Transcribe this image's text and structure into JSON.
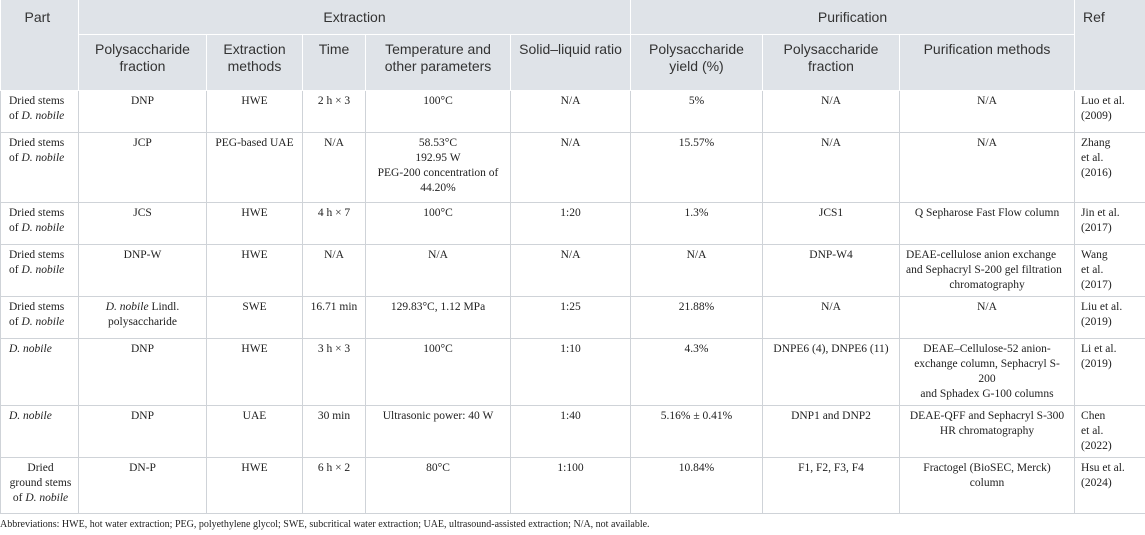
{
  "headers": {
    "part": "Part",
    "extraction": "Extraction",
    "purification": "Purification",
    "ref": "Ref",
    "ext_fraction": "Polysaccharide fraction",
    "ext_methods": "Extraction methods",
    "time": "Time",
    "temperature": "Temperature and other parameters",
    "ratio": "Solid–liquid ratio",
    "yield": "Polysaccharide yield (%)",
    "pur_fraction": "Polysaccharide fraction",
    "pur_methods": "Purification methods"
  },
  "rows": [
    {
      "part": [
        "Dried stems",
        "of ",
        "D. nobile"
      ],
      "fraction": "DNP",
      "method": "HWE",
      "time": "2 h × 3",
      "temp": [
        "100°C"
      ],
      "ratio": "N/A",
      "yield": "5%",
      "pfraction": "N/A",
      "pmethods": [
        "N/A"
      ],
      "ref": [
        "Luo et al.",
        "(2009)"
      ]
    },
    {
      "part": [
        "Dried stems",
        "of ",
        "D. nobile"
      ],
      "fraction": "JCP",
      "method": "PEG-based UAE",
      "time": "N/A",
      "temp": [
        "58.53°C",
        "192.95 W",
        "PEG-200 concentration of",
        "44.20%"
      ],
      "ratio": "N/A",
      "yield": "15.57%",
      "pfraction": "N/A",
      "pmethods": [
        "N/A"
      ],
      "ref": [
        "Zhang",
        "et al.",
        "(2016)"
      ]
    },
    {
      "part": [
        "Dried stems",
        "of ",
        "D. nobile"
      ],
      "fraction": "JCS",
      "method": "HWE",
      "time": "4 h × 7",
      "temp": [
        "100°C"
      ],
      "ratio": "1:20",
      "yield": "1.3%",
      "pfraction": "JCS1",
      "pmethods": [
        "Q Sepharose Fast Flow column"
      ],
      "ref": [
        "Jin et al.",
        "(2017)"
      ]
    },
    {
      "part": [
        "Dried stems",
        "of ",
        "D. nobile"
      ],
      "fraction": "DNP-W",
      "method": "HWE",
      "time": "N/A",
      "temp": [
        "N/A"
      ],
      "ratio": "N/A",
      "yield": "N/A",
      "pfraction": "DNP-W4",
      "pmethods": [
        "DEAE-cellulose anion exchange",
        "and Sephacryl S-200 gel filtration",
        "chromatography"
      ],
      "ref": [
        "Wang",
        "et al.",
        "(2017)"
      ]
    },
    {
      "part": [
        "Dried stems",
        "of ",
        "D. nobile"
      ],
      "fraction_italic": "D. nobile",
      "fraction_rest": " Lindl.",
      "fraction_line2": "polysaccharide",
      "method": "SWE",
      "time": "16.71 min",
      "temp": [
        "129.83°C, 1.12 MPa"
      ],
      "ratio": "1:25",
      "yield": "21.88%",
      "pfraction": "N/A",
      "pmethods": [
        "N/A"
      ],
      "ref": [
        "Liu et al.",
        "(2019)"
      ]
    },
    {
      "part_italic": "D. nobile",
      "fraction": "DNP",
      "method": "HWE",
      "time": "3 h × 3",
      "temp": [
        "100°C"
      ],
      "ratio": "1:10",
      "yield": "4.3%",
      "pfraction": "DNPE6 (4), DNPE6 (11)",
      "pmethods": [
        "DEAE–Cellulose-52 anion-",
        "exchange column, Sephacryl S-200",
        "and Sphadex G-100 columns"
      ],
      "ref": [
        "Li et al.",
        "(2019)"
      ]
    },
    {
      "part_italic": "D. nobile",
      "fraction": "DNP",
      "method": "UAE",
      "time": "30 min",
      "temp": [
        "Ultrasonic power: 40 W"
      ],
      "ratio": "1:40",
      "yield": "5.16% ± 0.41%",
      "pfraction": "DNP1 and DNP2",
      "pmethods": [
        "DEAE-QFF and Sephacryl S-300",
        "HR chromatography"
      ],
      "ref": [
        "Chen",
        "et al.",
        "(2022)"
      ]
    },
    {
      "part": [
        "Dried",
        "ground stems",
        "of ",
        "D. nobile"
      ],
      "fraction": "DN-P",
      "method": "HWE",
      "time": "6 h × 2",
      "temp": [
        "80°C"
      ],
      "ratio": "1:100",
      "yield": "10.84%",
      "pfraction": "F1, F2, F3, F4",
      "pmethods": [
        "Fractogel (BioSEC, Merck)",
        "column"
      ],
      "ref": [
        "Hsu et al.",
        "(2024)"
      ]
    }
  ],
  "footnote": "Abbreviations: HWE, hot water extraction; PEG, polyethylene glycol; SWE, subcritical water extraction; UAE, ultrasound-assisted extraction; N/A, not available."
}
